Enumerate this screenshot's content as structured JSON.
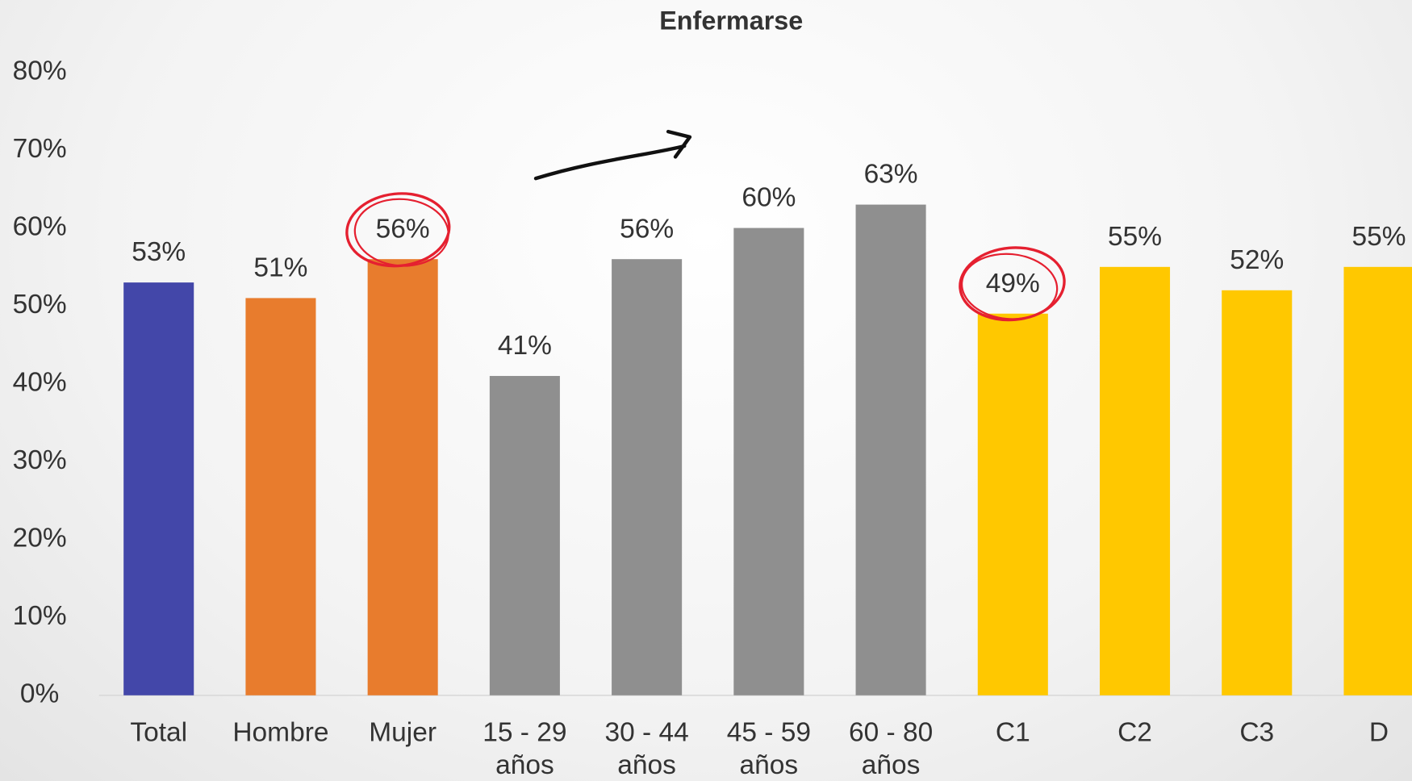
{
  "chart_data": {
    "type": "bar",
    "title": "Enfermarse",
    "categories": [
      "Total",
      "Hombre",
      "Mujer",
      "15 - 29 años",
      "30 - 44 años",
      "45 - 59 años",
      "60 - 80 años",
      "C1",
      "C2",
      "C3",
      "D"
    ],
    "values": [
      53,
      51,
      56,
      41,
      56,
      60,
      63,
      49,
      55,
      52,
      55
    ],
    "value_labels": [
      "53%",
      "51%",
      "56%",
      "41%",
      "56%",
      "60%",
      "63%",
      "49%",
      "55%",
      "52%",
      "55%"
    ],
    "colors": [
      "#4347a9",
      "#e87c2d",
      "#e87c2d",
      "#8f8f8f",
      "#8f8f8f",
      "#8f8f8f",
      "#8f8f8f",
      "#ffc800",
      "#ffc800",
      "#ffc800",
      "#ffc800"
    ],
    "ylim": [
      0,
      80
    ],
    "yticks": [
      {
        "value": 0,
        "label": "0%"
      },
      {
        "value": 10,
        "label": "10%"
      },
      {
        "value": 20,
        "label": "20%"
      },
      {
        "value": 30,
        "label": "30%"
      },
      {
        "value": 40,
        "label": "40%"
      },
      {
        "value": 50,
        "label": "50%"
      },
      {
        "value": 60,
        "label": "60%"
      },
      {
        "value": 70,
        "label": "70%"
      },
      {
        "value": 80,
        "label": "80%"
      }
    ],
    "grid": false
  }
}
